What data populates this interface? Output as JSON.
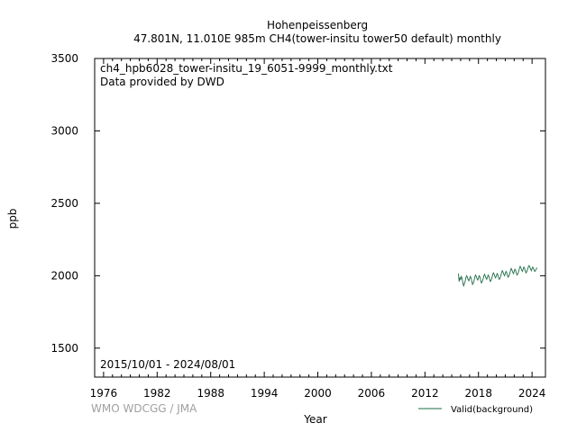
{
  "header": {
    "title": "Hohenpeissenberg",
    "subtitle": "47.801N, 11.010E 985m    CH4(tower-insitu tower50 default) monthly"
  },
  "annotations": {
    "file": "ch4_hpb6028_tower-insitu_19_6051-9999_monthly.txt",
    "provider": "Data provided by DWD",
    "period": "2015/10/01 - 2024/08/01",
    "credit": "WMO WDCGG / JMA"
  },
  "chart_data": {
    "type": "line",
    "xlabel": "Year",
    "ylabel": "ppb",
    "xlim": [
      1975,
      2025.5
    ],
    "ylim": [
      1300,
      3500
    ],
    "xticks": [
      1976,
      1982,
      1988,
      1994,
      2000,
      2006,
      2012,
      2018,
      2024
    ],
    "yticks": [
      1500,
      2000,
      2500,
      3000,
      3500
    ],
    "grid": false,
    "legend_position": "bottom-right",
    "colors": {
      "series": "#1d6b45"
    },
    "series": [
      {
        "name": "Valid(background)",
        "x": [
          2015.75,
          2015.83,
          2015.92,
          2016.0,
          2016.08,
          2016.17,
          2016.25,
          2016.33,
          2016.42,
          2016.5,
          2016.58,
          2016.67,
          2016.75,
          2016.83,
          2016.92,
          2017.0,
          2017.08,
          2017.17,
          2017.25,
          2017.33,
          2017.42,
          2017.5,
          2017.58,
          2017.67,
          2017.75,
          2017.83,
          2017.92,
          2018.0,
          2018.08,
          2018.17,
          2018.25,
          2018.33,
          2018.42,
          2018.5,
          2018.58,
          2018.67,
          2018.75,
          2018.83,
          2018.92,
          2019.0,
          2019.08,
          2019.17,
          2019.25,
          2019.33,
          2019.42,
          2019.5,
          2019.58,
          2019.67,
          2019.75,
          2019.83,
          2019.92,
          2020.0,
          2020.08,
          2020.17,
          2020.25,
          2020.33,
          2020.42,
          2020.5,
          2020.58,
          2020.67,
          2020.75,
          2020.83,
          2020.92,
          2021.0,
          2021.08,
          2021.17,
          2021.25,
          2021.33,
          2021.42,
          2021.5,
          2021.58,
          2021.67,
          2021.75,
          2021.83,
          2021.92,
          2022.0,
          2022.08,
          2022.17,
          2022.25,
          2022.33,
          2022.42,
          2022.5,
          2022.58,
          2022.67,
          2022.75,
          2022.83,
          2022.92,
          2023.0,
          2023.08,
          2023.17,
          2023.25,
          2023.33,
          2023.42,
          2023.5,
          2023.58,
          2023.67,
          2023.75,
          2023.83,
          2023.92,
          2024.0,
          2024.08,
          2024.17,
          2024.25,
          2024.33,
          2024.42,
          2024.5,
          2024.58
        ],
        "values": [
          2015,
          1960,
          1985,
          1975,
          1995,
          1980,
          1950,
          1930,
          1945,
          1960,
          1985,
          2000,
          1990,
          1975,
          1965,
          1980,
          1995,
          1985,
          1960,
          1940,
          1950,
          1965,
          1990,
          2005,
          1995,
          1980,
          1970,
          1985,
          2000,
          1990,
          1965,
          1950,
          1960,
          1975,
          1995,
          2010,
          2000,
          1985,
          1975,
          1990,
          2005,
          1995,
          1975,
          1960,
          1970,
          1985,
          2005,
          2020,
          2010,
          1995,
          1985,
          2000,
          2015,
          2005,
          1985,
          1975,
          1985,
          2000,
          2020,
          2035,
          2025,
          2010,
          2000,
          2015,
          2030,
          2020,
          2000,
          1990,
          2000,
          2015,
          2035,
          2050,
          2040,
          2025,
          2015,
          2030,
          2045,
          2035,
          2015,
          2005,
          2015,
          2030,
          2050,
          2065,
          2055,
          2040,
          2030,
          2045,
          2060,
          2050,
          2030,
          2020,
          2030,
          2045,
          2060,
          2070,
          2060,
          2045,
          2035,
          2050,
          2060,
          2050,
          2035,
          2030,
          2040,
          2050,
          2055
        ]
      }
    ]
  }
}
